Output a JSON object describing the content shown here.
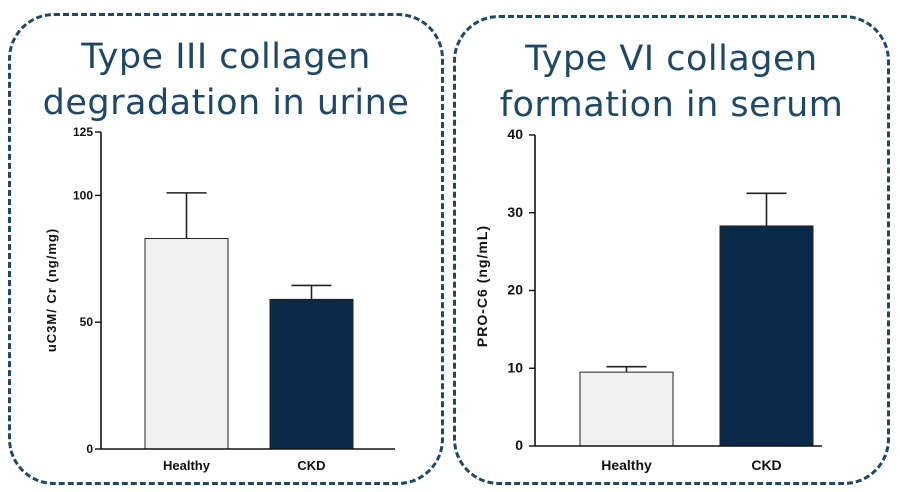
{
  "panels": [
    {
      "title_line1": "Type III collagen",
      "title_line2": "degradation in urine"
    },
    {
      "title_line1": "Type VI collagen",
      "title_line2": "formation in serum"
    }
  ],
  "colors": {
    "border": "#1d4868",
    "title": "#1d4868",
    "healthy_bar": "#f0f0f0",
    "ckd_bar": "#0b2a4a"
  },
  "chart_data": [
    {
      "type": "bar",
      "title": "Type III collagen degradation in urine",
      "categories": [
        "Healthy",
        "CKD"
      ],
      "values": [
        83,
        59
      ],
      "error_upper": [
        101,
        64.5
      ],
      "bar_colors": [
        "#f0f0f0",
        "#0b2a4a"
      ],
      "xlabel": "",
      "ylabel": "uC3M/ Cr (ng/mg)",
      "ylim": [
        0,
        125
      ],
      "yticks": [
        0,
        50,
        100,
        125
      ],
      "ytick_labels": [
        "0",
        "50",
        "100",
        "125"
      ],
      "grid": false
    },
    {
      "type": "bar",
      "title": "Type VI collagen formation in serum",
      "categories": [
        "Healthy",
        "CKD"
      ],
      "values": [
        9.5,
        28.3
      ],
      "error_upper": [
        10.2,
        32.5
      ],
      "bar_colors": [
        "#f0f0f0",
        "#0b2a4a"
      ],
      "xlabel": "",
      "ylabel": "PRO-C6 (ng/mL)",
      "ylim": [
        0,
        40
      ],
      "yticks": [
        0,
        10,
        20,
        30,
        40
      ],
      "ytick_labels": [
        "0",
        "10",
        "20",
        "30",
        "40"
      ],
      "grid": false
    }
  ]
}
